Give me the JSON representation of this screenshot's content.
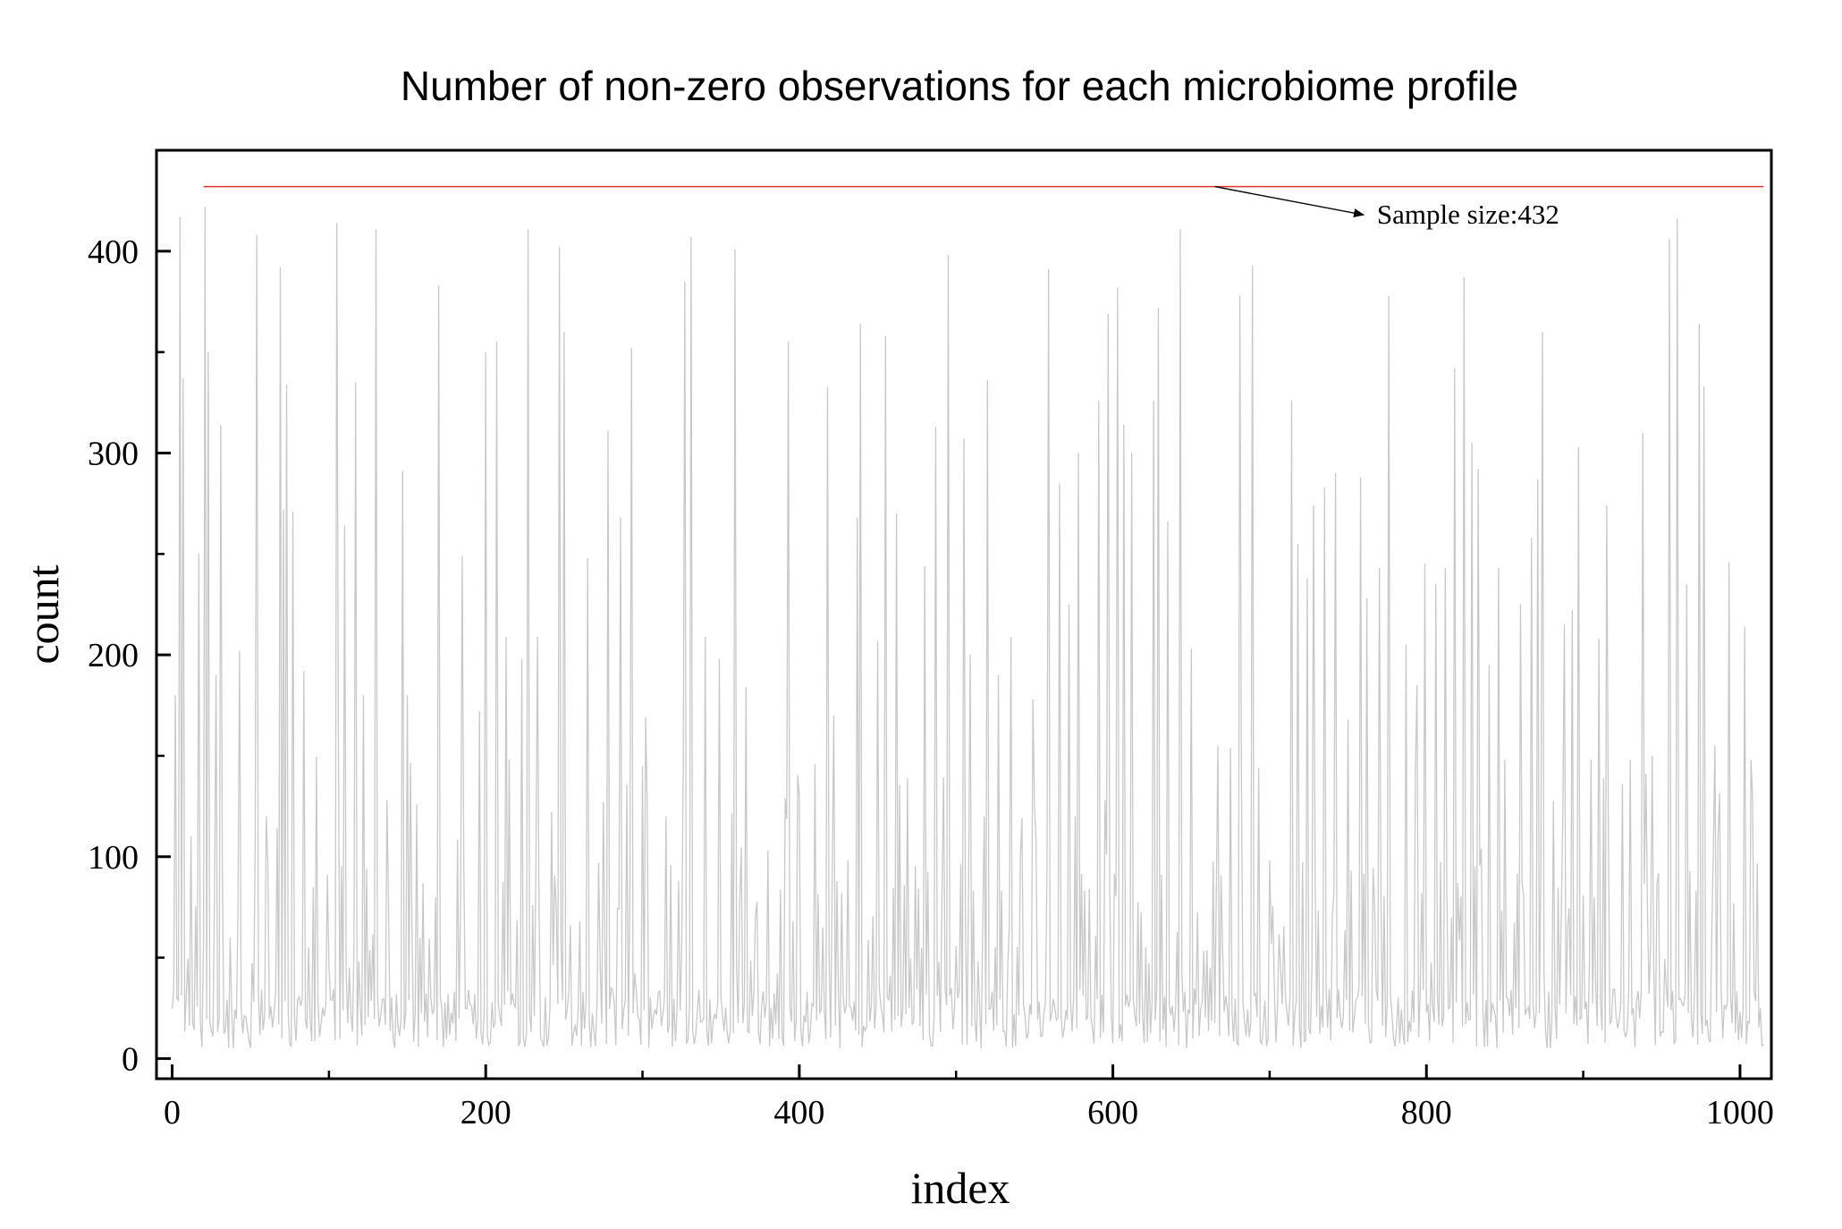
{
  "chart_data": {
    "type": "line",
    "title": "Number of non-zero observations for each microbiome profile",
    "xlabel": "index",
    "ylabel": "count",
    "xlim": [
      -10,
      1020
    ],
    "ylim": [
      -10,
      450
    ],
    "x_ticks": [
      0,
      200,
      400,
      600,
      800,
      1000
    ],
    "y_ticks": [
      0,
      100,
      200,
      300,
      400
    ],
    "grid": false,
    "series_color": "#c8c8c8",
    "x_range": [
      0,
      1015
    ],
    "peaks": [
      [
        2,
        180
      ],
      [
        5,
        417
      ],
      [
        7,
        337
      ],
      [
        12,
        110
      ],
      [
        17,
        250
      ],
      [
        21,
        422
      ],
      [
        23,
        350
      ],
      [
        28,
        190
      ],
      [
        31,
        314
      ],
      [
        37,
        60
      ],
      [
        43,
        202
      ],
      [
        53,
        110
      ],
      [
        54,
        408
      ],
      [
        60,
        120
      ],
      [
        69,
        392
      ],
      [
        71,
        272
      ],
      [
        73,
        334
      ],
      [
        77,
        271
      ],
      [
        84,
        192
      ],
      [
        90,
        85
      ],
      [
        105,
        414
      ],
      [
        106,
        164
      ],
      [
        110,
        264
      ],
      [
        117,
        335
      ],
      [
        122,
        180
      ],
      [
        130,
        411
      ],
      [
        137,
        128
      ],
      [
        147,
        291
      ],
      [
        150,
        180
      ],
      [
        170,
        383
      ],
      [
        185,
        249
      ],
      [
        196,
        172
      ],
      [
        200,
        350
      ],
      [
        207,
        355
      ],
      [
        213,
        209
      ],
      [
        223,
        198
      ],
      [
        227,
        411
      ],
      [
        233,
        209
      ],
      [
        247,
        402
      ],
      [
        250,
        360
      ],
      [
        260,
        68
      ],
      [
        265,
        248
      ],
      [
        275,
        127
      ],
      [
        278,
        311
      ],
      [
        286,
        268
      ],
      [
        293,
        352
      ],
      [
        300,
        145
      ],
      [
        302,
        169
      ],
      [
        315,
        120
      ],
      [
        323,
        88
      ],
      [
        327,
        385
      ],
      [
        331,
        407
      ],
      [
        340,
        209
      ],
      [
        349,
        198
      ],
      [
        359,
        401
      ],
      [
        366,
        184
      ],
      [
        380,
        103
      ],
      [
        393,
        355
      ],
      [
        400,
        130
      ],
      [
        410,
        146
      ],
      [
        418,
        333
      ],
      [
        422,
        170
      ],
      [
        437,
        268
      ],
      [
        439,
        364
      ],
      [
        450,
        207
      ],
      [
        455,
        358
      ],
      [
        462,
        270
      ],
      [
        469,
        139
      ],
      [
        480,
        244
      ],
      [
        487,
        313
      ],
      [
        495,
        398
      ],
      [
        505,
        307
      ],
      [
        509,
        200
      ],
      [
        520,
        336
      ],
      [
        527,
        190
      ],
      [
        535,
        209
      ],
      [
        549,
        178
      ],
      [
        559,
        391
      ],
      [
        566,
        285
      ],
      [
        572,
        225
      ],
      [
        578,
        300
      ],
      [
        591,
        326
      ],
      [
        597,
        369
      ],
      [
        603,
        382
      ],
      [
        607,
        314
      ],
      [
        612,
        300
      ],
      [
        626,
        326
      ],
      [
        629,
        372
      ],
      [
        635,
        266
      ],
      [
        643,
        411
      ],
      [
        650,
        203
      ],
      [
        667,
        155
      ],
      [
        675,
        154
      ],
      [
        681,
        378
      ],
      [
        689,
        393
      ],
      [
        700,
        98
      ],
      [
        714,
        326
      ],
      [
        718,
        255
      ],
      [
        724,
        238
      ],
      [
        728,
        274
      ],
      [
        735,
        283
      ],
      [
        742,
        290
      ],
      [
        750,
        168
      ],
      [
        758,
        288
      ],
      [
        762,
        228
      ],
      [
        770,
        243
      ],
      [
        776,
        378
      ],
      [
        787,
        205
      ],
      [
        794,
        185
      ],
      [
        799,
        245
      ],
      [
        806,
        235
      ],
      [
        812,
        243
      ],
      [
        818,
        342
      ],
      [
        824,
        387
      ],
      [
        829,
        305
      ],
      [
        833,
        292
      ],
      [
        840,
        195
      ],
      [
        846,
        243
      ],
      [
        850,
        148
      ],
      [
        860,
        225
      ],
      [
        867,
        258
      ],
      [
        871,
        287
      ],
      [
        874,
        360
      ],
      [
        888,
        215
      ],
      [
        893,
        222
      ],
      [
        897,
        303
      ],
      [
        905,
        148
      ],
      [
        910,
        208
      ],
      [
        915,
        274
      ],
      [
        925,
        136
      ],
      [
        930,
        148
      ],
      [
        938,
        310
      ],
      [
        944,
        150
      ],
      [
        955,
        406
      ],
      [
        960,
        416
      ],
      [
        966,
        235
      ],
      [
        974,
        364
      ],
      [
        977,
        333
      ],
      [
        984,
        155
      ],
      [
        993,
        246
      ],
      [
        1003,
        214
      ],
      [
        1007,
        148
      ],
      [
        1013,
        25
      ]
    ],
    "reference_line": {
      "y": 432,
      "x_range": [
        20,
        1015
      ],
      "color": "#e03030"
    },
    "annotation": {
      "text": "Sample size:432",
      "arrow_from": [
        665,
        432
      ],
      "arrow_to": [
        760,
        418
      ],
      "text_at": [
        765,
        418
      ]
    }
  }
}
